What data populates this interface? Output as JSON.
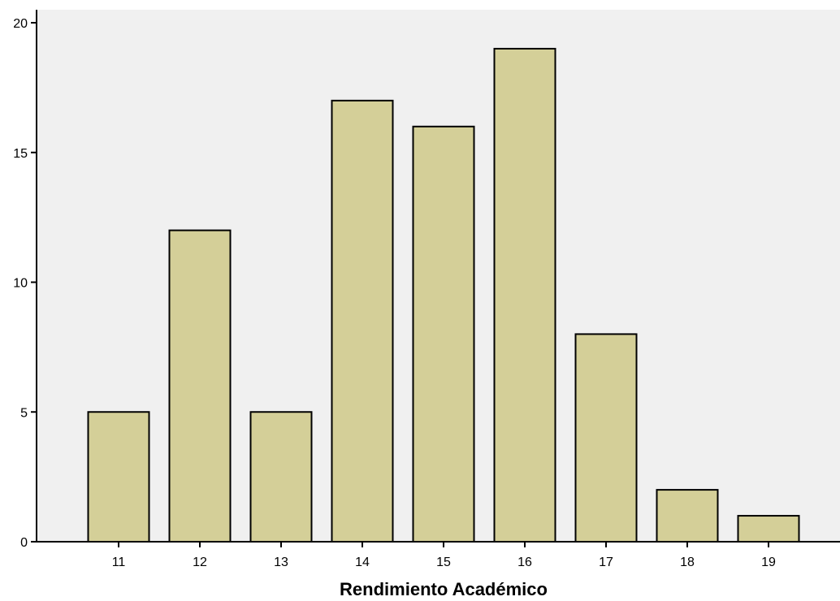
{
  "chart_data": {
    "type": "bar",
    "categories": [
      "11",
      "12",
      "13",
      "14",
      "15",
      "16",
      "17",
      "18",
      "19"
    ],
    "values": [
      5,
      12,
      5,
      17,
      16,
      19,
      8,
      2,
      1
    ],
    "xlabel": "Rendimiento Académico",
    "ylabel": "",
    "ylim": [
      0,
      20
    ],
    "yticks": [
      0,
      5,
      10,
      15,
      20
    ],
    "grid": false,
    "colors": {
      "plot_background": "#f0f0f0",
      "bar_fill": "#d4cf98",
      "bar_stroke": "#000000",
      "axis": "#000000"
    }
  }
}
